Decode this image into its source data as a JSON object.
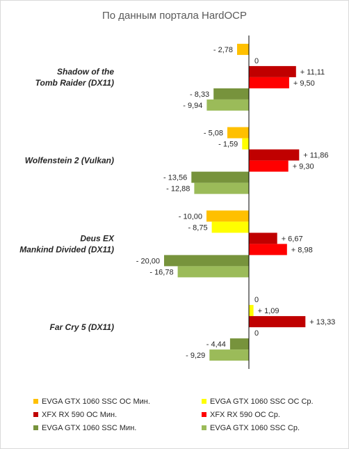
{
  "chart_data": {
    "type": "bar",
    "orientation": "horizontal",
    "title": "По данным портала HardOCP",
    "categories": [
      [
        "Shadow of the",
        "Tomb Raider (DX11)"
      ],
      [
        "Wolfenstein 2 (Vulkan)"
      ],
      [
        "Deus EX",
        "Mankind Divided (DX11)"
      ],
      [
        "Far Cry 5 (DX11)"
      ]
    ],
    "series": [
      {
        "name": "EVGA GTX 1060 SSC OC Мин.",
        "color": "#FFC000",
        "values": [
          -2.78,
          -5.08,
          -10.0,
          0
        ],
        "labels": [
          "- 2,78",
          "- 5,08",
          "- 10,00",
          "0"
        ]
      },
      {
        "name": "EVGA GTX 1060 SSC OC Ср.",
        "color": "#FFFF00",
        "values": [
          0,
          -1.59,
          -8.75,
          1.09
        ],
        "labels": [
          "0",
          "- 1,59",
          "- 8,75",
          "+ 1,09"
        ]
      },
      {
        "name": "XFX RX 590 OC Мин.",
        "color": "#C00000",
        "values": [
          11.11,
          11.86,
          6.67,
          13.33
        ],
        "labels": [
          "+ 11,11",
          "+ 11,86",
          "+ 6,67",
          "+ 13,33"
        ]
      },
      {
        "name": "XFX RX 590 OC Ср.",
        "color": "#FF0000",
        "values": [
          9.5,
          9.3,
          8.98,
          0
        ],
        "labels": [
          "+ 9,50",
          "+ 9,30",
          "+ 8,98",
          "0"
        ]
      },
      {
        "name": "EVGA GTX 1060 SSC Мин.",
        "color": "#77933C",
        "values": [
          -8.33,
          -13.56,
          -20.0,
          -4.44
        ],
        "labels": [
          "- 8,33",
          "- 13,56",
          "- 20,00",
          "- 4,44"
        ]
      },
      {
        "name": "EVGA GTX 1060 SSC Ср.",
        "color": "#9BBB59",
        "values": [
          -9.94,
          -12.88,
          -16.78,
          -9.29
        ],
        "labels": [
          "- 9,94",
          "- 12,88",
          "- 16,78",
          "- 9,29"
        ]
      }
    ],
    "xlim": [
      -20,
      20
    ],
    "legend": "bottom",
    "grid": false
  }
}
